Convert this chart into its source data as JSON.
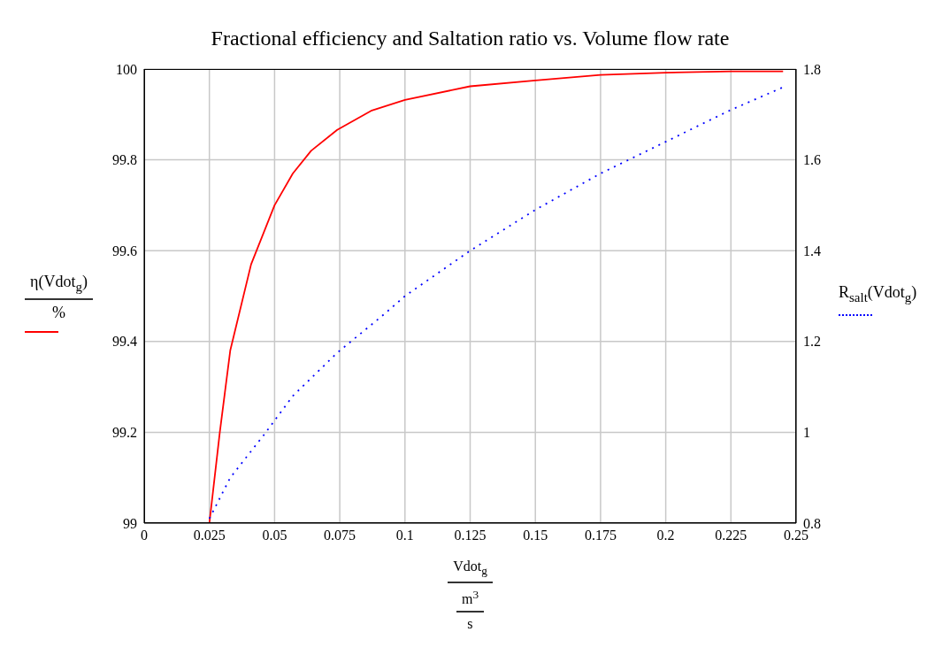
{
  "chart_data": {
    "type": "line",
    "title": "Fractional efficiency and Saltation ratio vs. Volume flow rate",
    "xlabel": "Vdot$_{g}$ m$^{3}$ s",
    "ylabel": "η(Vdot$_{g}$) %",
    "y2label": "R$_{salt}$(Vdot$_{g}$)",
    "xlim": [
      0,
      0.25
    ],
    "xticks": [
      0,
      0.025,
      0.05,
      0.075,
      0.1,
      0.125,
      0.15,
      0.175,
      0.2,
      0.225,
      0.25
    ],
    "ylim": [
      99,
      100
    ],
    "yticks": [
      99,
      99.2,
      99.4,
      99.6,
      99.8,
      100
    ],
    "y2lim": [
      0.8,
      1.8
    ],
    "y2ticks": [
      0.8,
      1,
      1.2,
      1.4,
      1.6,
      1.8
    ],
    "grid": true,
    "marker": "none",
    "series": [
      {
        "color": "#ff0000",
        "line_style": "solid",
        "x": [
          0.025,
          0.029,
          0.033,
          0.041,
          0.05,
          0.057,
          0.064,
          0.074,
          0.087,
          0.1,
          0.125,
          0.15,
          0.175,
          0.2,
          0.225,
          0.245
        ],
        "values": [
          99.0,
          99.2,
          99.38,
          99.57,
          99.7,
          99.77,
          99.82,
          99.866,
          99.908,
          99.932,
          99.962,
          99.975,
          99.987,
          99.992,
          99.995,
          99.995
        ]
      },
      {
        "color": "#0000ff",
        "line_style": "dotted",
        "axis": "y2",
        "x": [
          0.025,
          0.033,
          0.046,
          0.057,
          0.074,
          0.092,
          0.1,
          0.125,
          0.15,
          0.175,
          0.2,
          0.225,
          0.245
        ],
        "values": [
          0.81,
          0.9,
          0.995,
          1.08,
          1.175,
          1.26,
          1.3,
          1.4,
          1.49,
          1.57,
          1.64,
          1.71,
          1.76
        ]
      }
    ]
  }
}
